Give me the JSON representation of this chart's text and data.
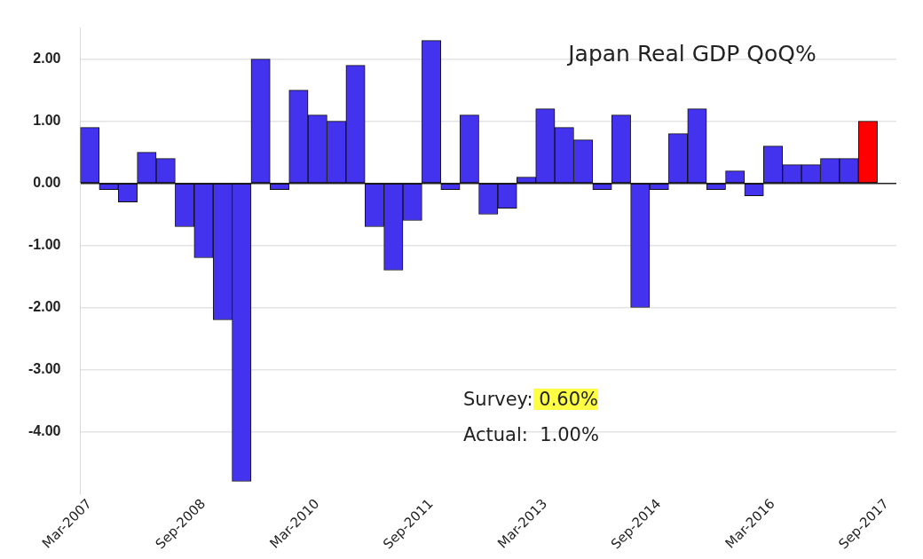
{
  "chart_data": {
    "type": "bar",
    "title": "Japan Real GDP QoQ%",
    "categories": [
      "Mar-2007",
      null,
      null,
      null,
      null,
      null,
      "Sep-2008",
      null,
      null,
      null,
      null,
      null,
      "Mar-2010",
      null,
      null,
      null,
      null,
      null,
      "Sep-2011",
      null,
      null,
      null,
      null,
      null,
      "Mar-2013",
      null,
      null,
      null,
      null,
      null,
      "Sep-2014",
      null,
      null,
      null,
      null,
      null,
      "Mar-2016",
      null,
      null,
      null,
      null,
      null,
      "Sep-2017"
    ],
    "values": [
      0.9,
      -0.1,
      -0.3,
      0.5,
      0.4,
      -0.7,
      -1.2,
      -2.2,
      -4.8,
      2.0,
      -0.1,
      1.5,
      1.1,
      1.0,
      1.9,
      -0.7,
      -1.4,
      -0.6,
      2.3,
      -0.1,
      1.1,
      -0.5,
      -0.4,
      0.1,
      1.2,
      0.9,
      0.7,
      -0.1,
      1.1,
      -2.0,
      -0.1,
      0.8,
      1.2,
      -0.1,
      0.2,
      -0.2,
      0.6,
      0.3,
      0.3,
      0.4,
      0.4,
      1.0,
      null
    ],
    "colors": [
      "#4433ee",
      "#4433ee",
      "#4433ee",
      "#4433ee",
      "#4433ee",
      "#4433ee",
      "#4433ee",
      "#4433ee",
      "#4433ee",
      "#4433ee",
      "#4433ee",
      "#4433ee",
      "#4433ee",
      "#4433ee",
      "#4433ee",
      "#4433ee",
      "#4433ee",
      "#4433ee",
      "#4433ee",
      "#4433ee",
      "#4433ee",
      "#4433ee",
      "#4433ee",
      "#4433ee",
      "#4433ee",
      "#4433ee",
      "#4433ee",
      "#4433ee",
      "#4433ee",
      "#4433ee",
      "#4433ee",
      "#4433ee",
      "#4433ee",
      "#4433ee",
      "#4433ee",
      "#4433ee",
      "#4433ee",
      "#4433ee",
      "#4433ee",
      "#4433ee",
      "#4433ee",
      "#ff0000",
      "#4433ee"
    ],
    "ylim": [
      -5,
      2.5
    ],
    "yticks": [
      {
        "value": -4,
        "label": "-4.00"
      },
      {
        "value": -3,
        "label": "-3.00"
      },
      {
        "value": -2,
        "label": "-2.00"
      },
      {
        "value": -1,
        "label": "-1.00"
      },
      {
        "value": 0,
        "label": "0.00"
      },
      {
        "value": 1,
        "label": "1.00"
      },
      {
        "value": 2,
        "label": "2.00"
      }
    ],
    "grid": "y",
    "legend": false,
    "annotations": [
      "Survey: 0.60%",
      "Actual:  1.00%"
    ]
  }
}
